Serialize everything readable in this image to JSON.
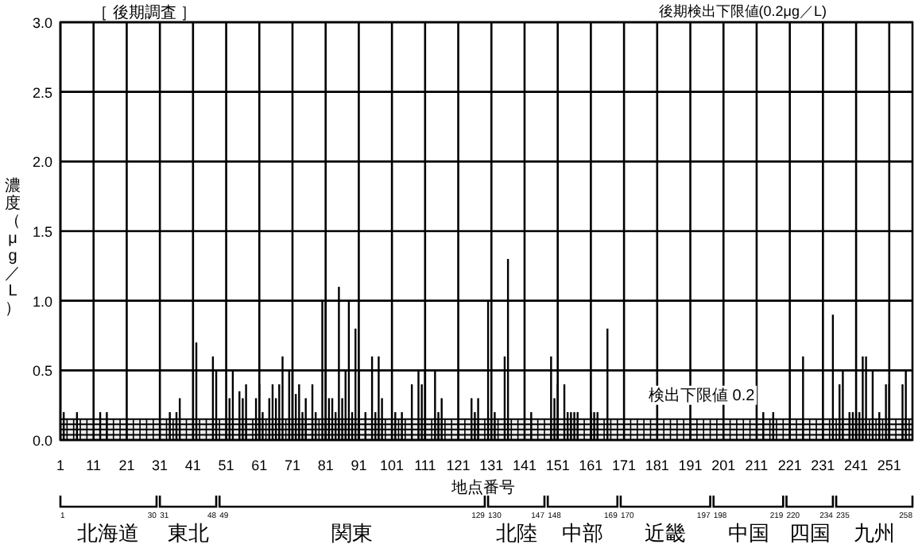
{
  "chart_data": {
    "type": "bar",
    "title": "［ 後期調査 ］",
    "xlabel": "地点番号",
    "ylabel": "濃度（μg／L）",
    "annotations": [
      "後期検出下限値(0.2μg／L)",
      "1",
      "30",
      "北海道",
      "31",
      "48",
      "東北",
      "49",
      "129",
      "関東",
      "130",
      "147",
      "北陸",
      "148",
      "169",
      "中部",
      "170",
      "197",
      "近畿",
      "198",
      "219",
      "中国",
      "220",
      "234",
      "四国",
      "235",
      "258",
      "九州"
    ],
    "series": [
      {
        "color": "#000000",
        "x": [
          2,
          6,
          13,
          15,
          34,
          36,
          37,
          42,
          47,
          48,
          52,
          53,
          55,
          56,
          57,
          60,
          61,
          62,
          64,
          65,
          66,
          67,
          68,
          70,
          71,
          72,
          73,
          74,
          75,
          77,
          78,
          80,
          81,
          82,
          83,
          84,
          85,
          86,
          87,
          88,
          89,
          90,
          91,
          93,
          95,
          96,
          97,
          98,
          102,
          104,
          107,
          109,
          110,
          111,
          114,
          115,
          116,
          125,
          126,
          127,
          130,
          132,
          135,
          136,
          143,
          149,
          150,
          151,
          153,
          154,
          155,
          156,
          157,
          161,
          162,
          163,
          166,
          213,
          216,
          225,
          234,
          236,
          237,
          239,
          240,
          241,
          242,
          243,
          244,
          246,
          248,
          250,
          251,
          255,
          256
        ],
        "values": [
          0.2,
          0.2,
          0.2,
          0.2,
          0.2,
          0.2,
          0.3,
          0.7,
          0.6,
          0.5,
          0.3,
          0.5,
          0.35,
          0.3,
          0.4,
          0.3,
          0.4,
          0.2,
          0.3,
          0.4,
          0.3,
          0.4,
          0.6,
          0.5,
          0.5,
          0.33,
          0.4,
          0.2,
          0.3,
          0.4,
          0.2,
          1.0,
          1.0,
          0.3,
          0.3,
          0.2,
          1.1,
          0.3,
          0.5,
          1.0,
          0.2,
          0.8,
          0.5,
          0.2,
          0.6,
          0.2,
          0.6,
          0.3,
          0.2,
          0.2,
          0.4,
          0.5,
          0.4,
          0.5,
          0.5,
          0.2,
          0.3,
          0.3,
          0.2,
          0.3,
          1.0,
          0.2,
          0.6,
          1.3,
          0.2,
          0.6,
          0.3,
          0.4,
          0.4,
          0.2,
          0.2,
          0.2,
          0.2,
          0.2,
          0.2,
          0.2,
          0.8,
          0.2,
          0.2,
          0.6,
          0.9,
          0.4,
          0.5,
          0.2,
          0.2,
          0.2,
          0.2,
          0.6,
          0.6,
          0.5,
          0.2,
          0.4,
          0.4,
          0.4,
          0.5
        ]
      }
    ],
    "xlim": [
      1,
      258
    ],
    "xticks": [
      1,
      11,
      21,
      31,
      41,
      51,
      61,
      71,
      81,
      91,
      101,
      111,
      121,
      131,
      141,
      151,
      161,
      171,
      181,
      191,
      201,
      211,
      221,
      231,
      241,
      251
    ],
    "ylim": [
      0,
      3
    ],
    "yticks": [
      {
        "value": 0,
        "label": "0.0"
      },
      {
        "value": 0.5,
        "label": "0.5"
      },
      {
        "value": 1,
        "label": "1.0"
      },
      {
        "value": 1.5,
        "label": "1.5"
      },
      {
        "value": 2,
        "label": "2.0"
      },
      {
        "value": 2.5,
        "label": "2.5"
      },
      {
        "value": 3,
        "label": "3.0"
      }
    ],
    "grid": true,
    "bands": [
      {
        "axis": "y",
        "from": 0,
        "to": 0.15,
        "label": "検出下限値 0.2"
      }
    ]
  }
}
